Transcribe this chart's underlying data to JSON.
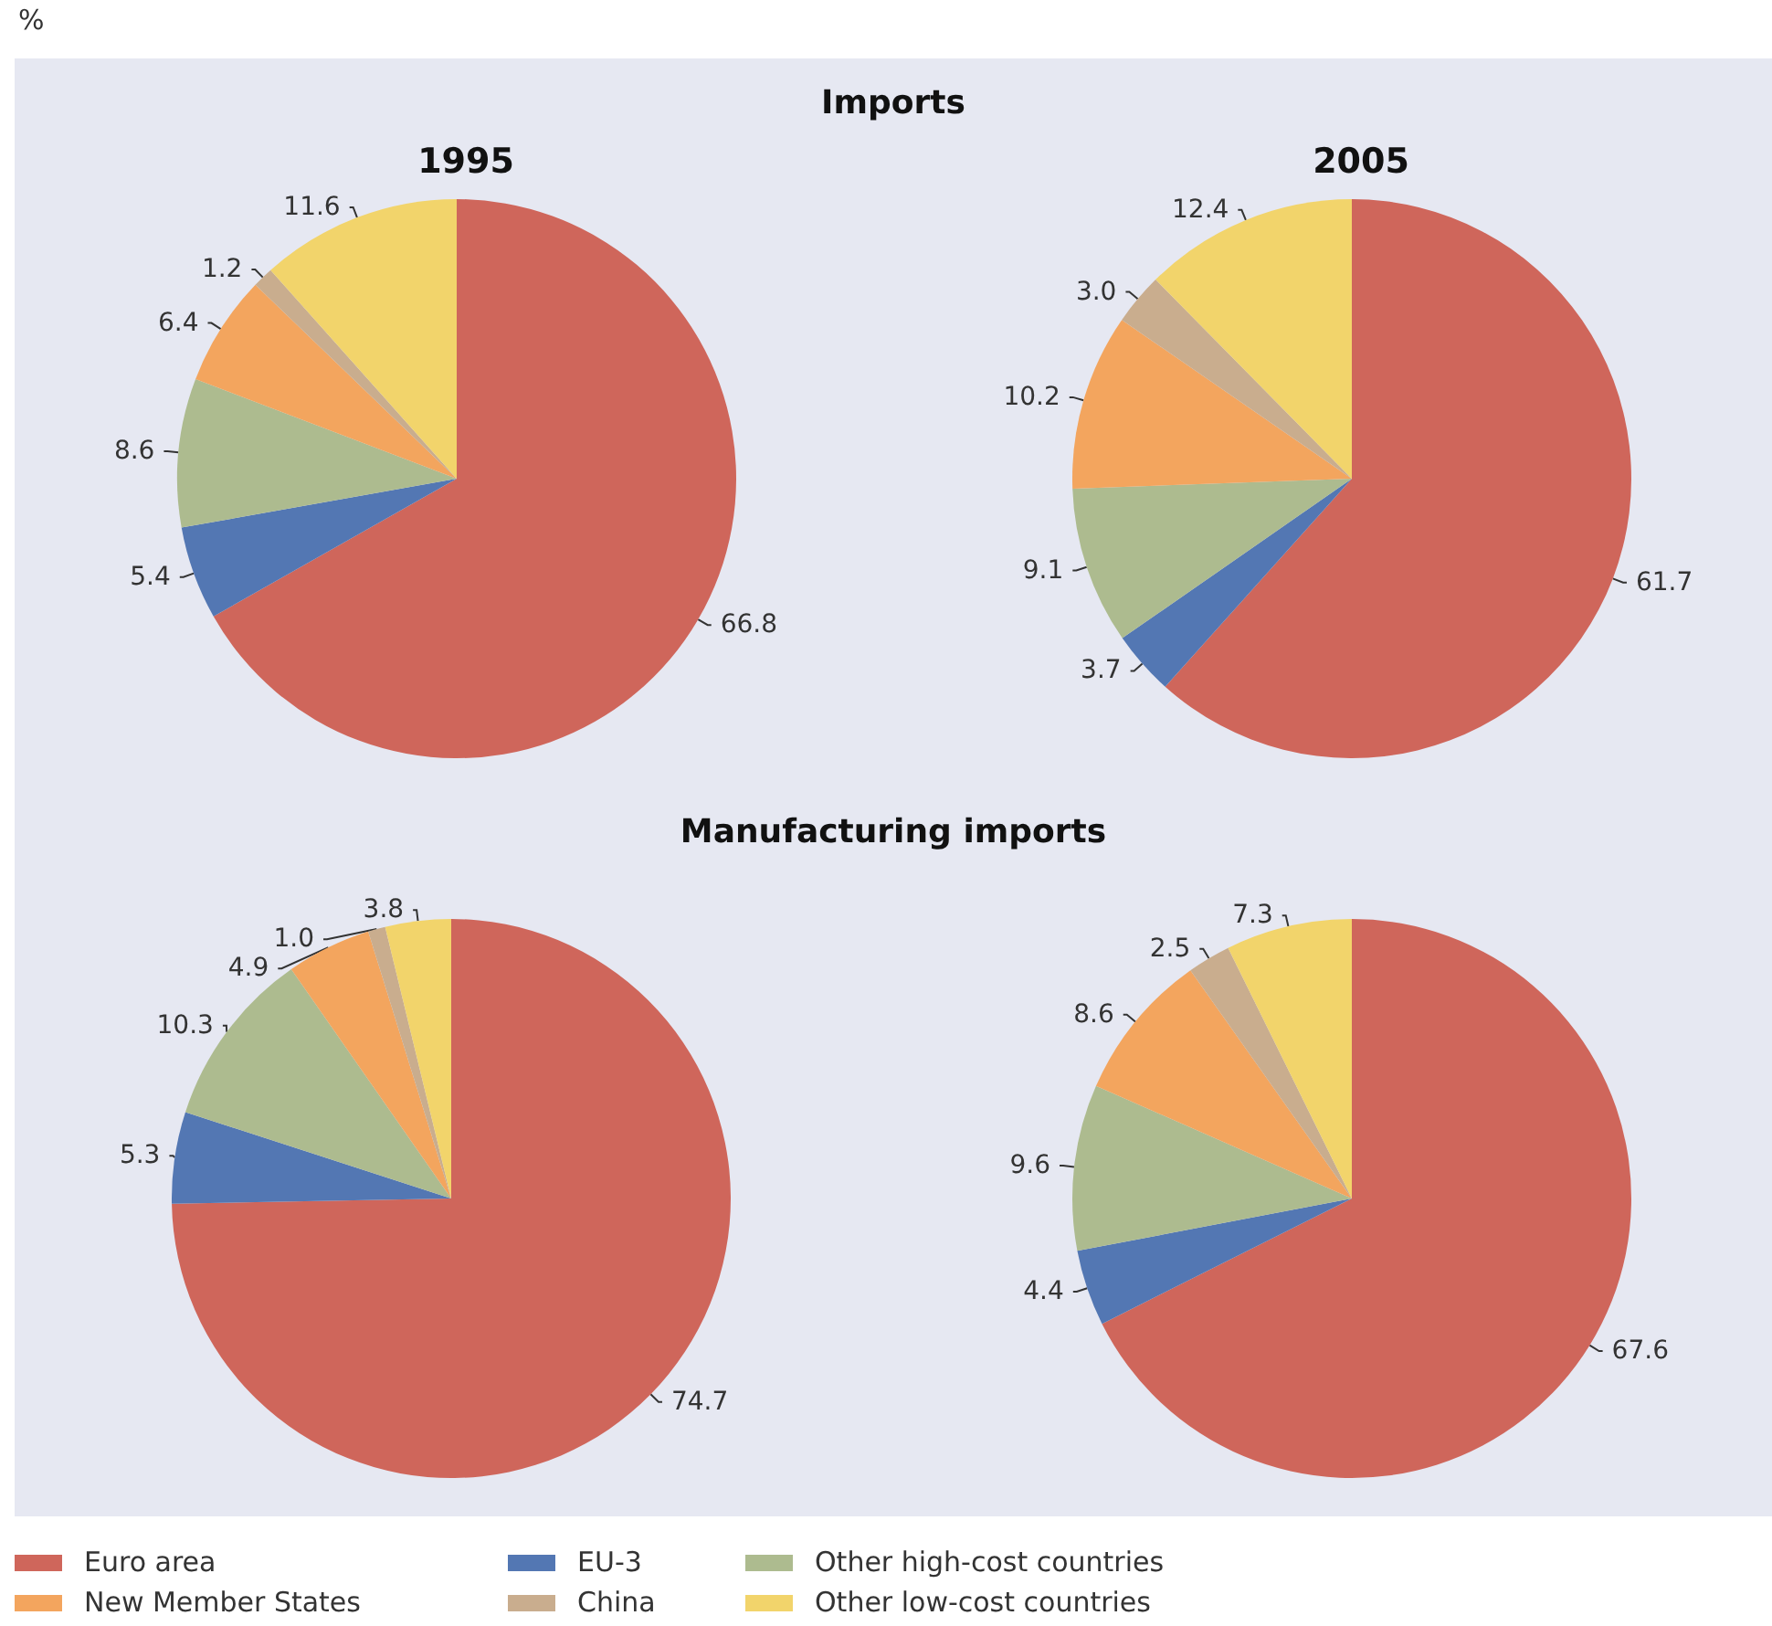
{
  "chart_data": [
    {
      "type": "pie",
      "title": "Imports",
      "subtitle": "1995",
      "annotations": [
        "%"
      ],
      "legend": "bottom",
      "categories": [
        "Euro area",
        "EU-3",
        "Other high-cost countries",
        "New Member States",
        "China",
        "Other low-cost countries"
      ],
      "values": [
        66.8,
        5.4,
        8.6,
        6.4,
        1.2,
        11.6
      ],
      "value_labels": [
        "66.8",
        "5.4",
        "8.6",
        "6.4",
        "1.2",
        "11.6"
      ],
      "colors": [
        "#cf665b",
        "#5377b3",
        "#adbb8f",
        "#f3a55e",
        "#c9ad8e",
        "#f2d46b"
      ]
    },
    {
      "type": "pie",
      "subtitle": "2005",
      "categories": [
        null,
        null,
        null,
        null,
        null,
        null
      ],
      "values": [
        61.7,
        3.7,
        9.1,
        10.2,
        3.0,
        12.4
      ],
      "value_labels": [
        "61.7",
        "3.7",
        "9.1",
        "10.2",
        "3.0",
        "12.4"
      ],
      "colors": [
        "#cf665b",
        "#5377b3",
        "#adbb8f",
        "#f3a55e",
        "#c9ad8e",
        "#f2d46b"
      ]
    },
    {
      "type": "pie",
      "title": "Manufacturing imports",
      "categories": [
        null,
        null,
        null,
        null,
        null,
        null
      ],
      "values": [
        74.7,
        5.3,
        10.3,
        4.9,
        1.0,
        3.8
      ],
      "value_labels": [
        "74.7",
        "5.3",
        "10.3",
        "4.9",
        "1.0",
        "3.8"
      ],
      "colors": [
        "#cf665b",
        "#5377b3",
        "#adbb8f",
        "#f3a55e",
        "#c9ad8e",
        "#f2d46b"
      ]
    },
    {
      "type": "pie",
      "categories": [
        null,
        null,
        null,
        null,
        null,
        null
      ],
      "values": [
        67.6,
        4.4,
        9.6,
        8.6,
        2.5,
        7.3
      ],
      "value_labels": [
        "67.6",
        "4.4",
        "9.6",
        "8.6",
        "2.5",
        "7.3"
      ],
      "colors": [
        "#cf665b",
        "#5377b3",
        "#adbb8f",
        "#f3a55e",
        "#c9ad8e",
        "#f2d46b"
      ]
    }
  ]
}
